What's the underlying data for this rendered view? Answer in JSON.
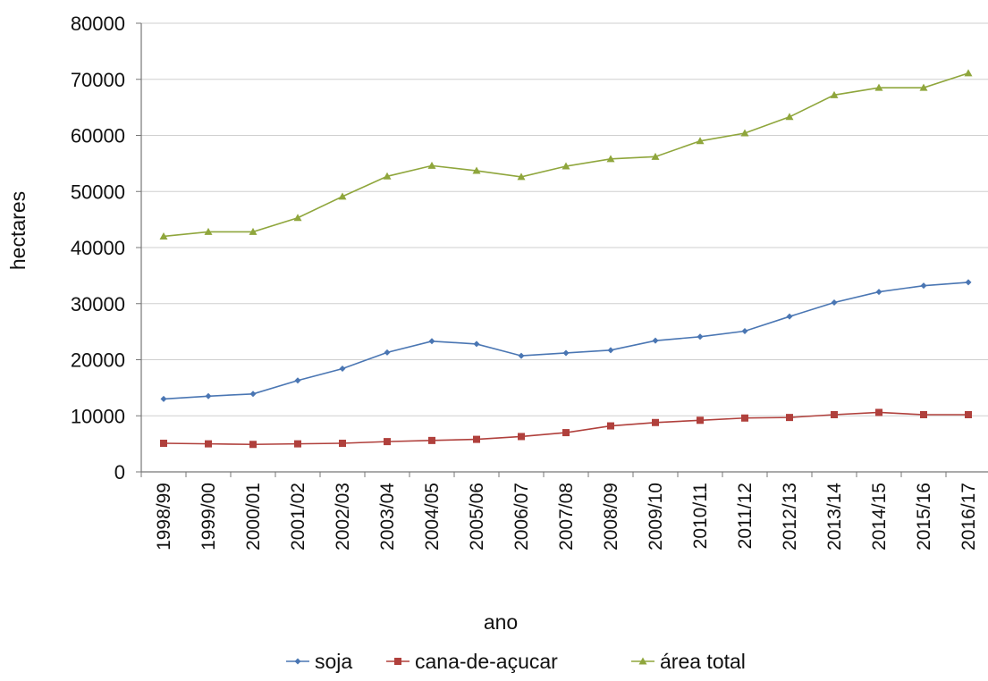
{
  "chart_data": {
    "type": "line",
    "title": "",
    "xlabel": "ano",
    "ylabel": "hectares",
    "ylim": [
      0,
      80000
    ],
    "yticks": [
      0,
      10000,
      20000,
      30000,
      40000,
      50000,
      60000,
      70000,
      80000
    ],
    "grid": true,
    "legend_position": "bottom",
    "categories": [
      "1998/99",
      "1999/00",
      "2000/01",
      "2001/02",
      "2002/03",
      "2003/04",
      "2004/05",
      "2005/06",
      "2006/07",
      "2007/08",
      "2008/09",
      "2009/10",
      "2010/11",
      "2011/12",
      "2012/13",
      "2013/14",
      "2014/15",
      "2015/16",
      "2016/17"
    ],
    "series": [
      {
        "name": "soja",
        "color": "#4a76b3",
        "marker": "diamond",
        "values": [
          13000,
          13500,
          13900,
          16300,
          18400,
          21300,
          23300,
          22800,
          20700,
          21200,
          21700,
          23400,
          24100,
          25100,
          27700,
          30200,
          32100,
          33200,
          33800
        ]
      },
      {
        "name": "cana-de-açucar",
        "color": "#b0403c",
        "marker": "square",
        "values": [
          5100,
          5000,
          4900,
          5000,
          5100,
          5400,
          5600,
          5800,
          6300,
          7000,
          8200,
          8800,
          9200,
          9600,
          9700,
          10200,
          10600,
          10200,
          10200
        ]
      },
      {
        "name": "área total",
        "color": "#8fa63c",
        "marker": "triangle",
        "values": [
          42000,
          42800,
          42800,
          45300,
          49100,
          52700,
          54600,
          53700,
          52600,
          54500,
          55800,
          56200,
          59000,
          60400,
          63300,
          67200,
          68500,
          68500,
          71100
        ]
      }
    ]
  }
}
